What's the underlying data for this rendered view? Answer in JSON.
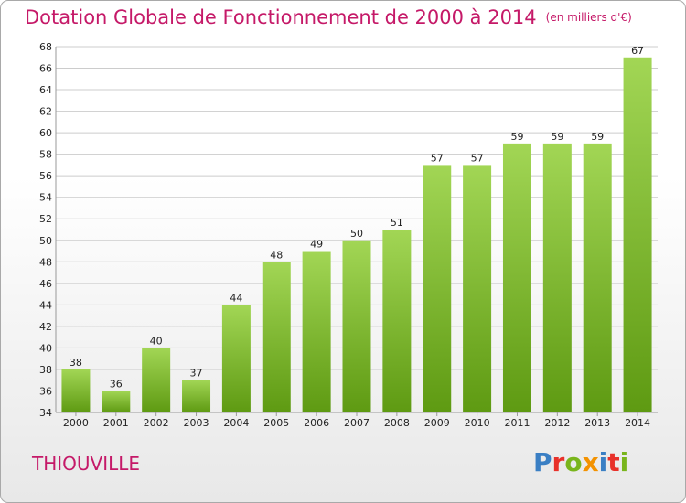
{
  "title": "Dotation Globale de Fonctionnement de 2000 à 2014",
  "subtitle": "(en milliers d'€)",
  "commune": "THIOUVILLE",
  "brand": {
    "text": "Proxiti",
    "letter_colors": [
      "#3a7fc4",
      "#e8312a",
      "#79b51c",
      "#f39200",
      "#3a7fc4",
      "#e8312a",
      "#79b51c"
    ]
  },
  "colors": {
    "title": "#c51968",
    "bar_top": "#a2d655",
    "bar_bottom": "#5e9a12",
    "grid": "#cccccc"
  },
  "chart_data": {
    "type": "bar",
    "categories": [
      "2000",
      "2001",
      "2002",
      "2003",
      "2004",
      "2005",
      "2006",
      "2007",
      "2008",
      "2009",
      "2010",
      "2011",
      "2012",
      "2013",
      "2014"
    ],
    "values": [
      38,
      36,
      40,
      37,
      44,
      48,
      49,
      50,
      51,
      57,
      57,
      59,
      59,
      59,
      67
    ],
    "ylim": [
      34,
      68
    ],
    "yticks": [
      34,
      36,
      38,
      40,
      42,
      44,
      46,
      48,
      50,
      52,
      54,
      56,
      58,
      60,
      62,
      64,
      66,
      68
    ],
    "grid": true,
    "xlabel": "",
    "ylabel": ""
  }
}
